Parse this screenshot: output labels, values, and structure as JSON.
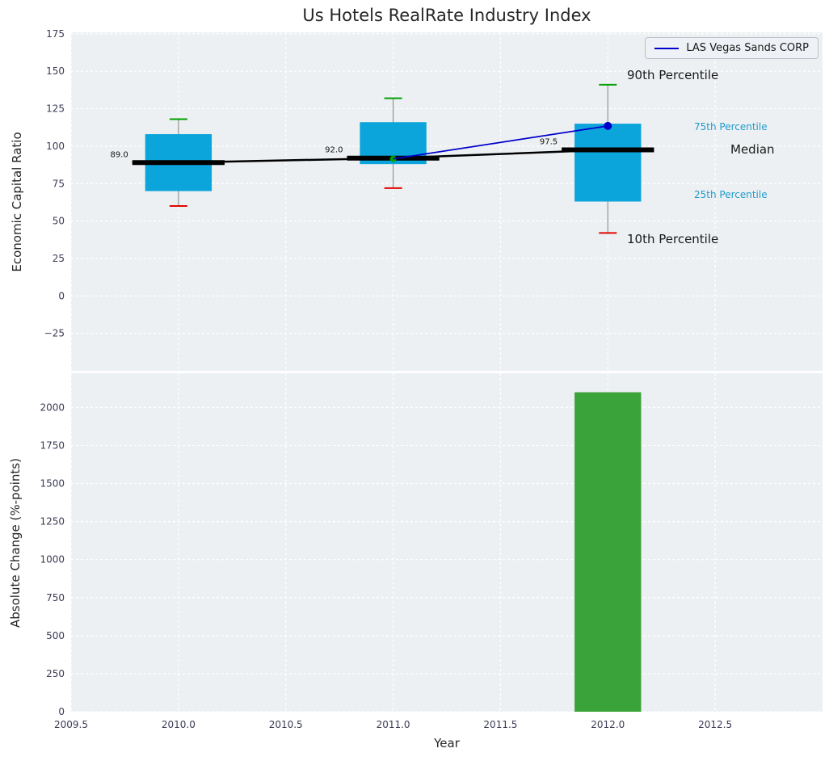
{
  "title": "Us Hotels RealRate Industry Index",
  "axes": {
    "top_ylabel": "Economic Capital Ratio",
    "bottom_ylabel": "Absolute Change (%-points)",
    "xlabel": "Year"
  },
  "legend": {
    "label": "LAS Vegas Sands CORP"
  },
  "annotations": {
    "p90": "90th Percentile",
    "p75": "75th Percentile",
    "median": "Median",
    "p25": "25th Percentile",
    "p10": "10th Percentile"
  },
  "colors": {
    "panel_bg": "#edf0f3",
    "grid": "#ffffff",
    "box": "#0ba4db",
    "bar": "#3aa33a",
    "median": "#000000",
    "company_line": "#0000cc",
    "whisker": "#999999",
    "cap_top": "#00a000",
    "cap_bottom": "#e10600",
    "start_marker": "#00a000",
    "tick_label": "#3b3b55",
    "percentile_label": "#1f9acb",
    "title_color": "#262626"
  },
  "chart_data": [
    {
      "type": "boxplot",
      "title": "Us Hotels RealRate Industry Index",
      "ylabel": "Economic Capital Ratio",
      "ylim": [
        -50,
        176
      ],
      "yticks": [
        175,
        150,
        125,
        100,
        75,
        50,
        25,
        0,
        -25
      ],
      "xlim": [
        2009.5,
        2013.0
      ],
      "xticks": [
        2009.5,
        2010.0,
        2010.5,
        2011.0,
        2011.5,
        2012.0,
        2012.5
      ],
      "grid": true,
      "legend_position": "upper right",
      "boxes": [
        {
          "year": 2010,
          "p10": 60,
          "p25": 70,
          "median": 89.0,
          "p75": 108,
          "p90": 118,
          "median_label": "89.0"
        },
        {
          "year": 2011,
          "p10": 72,
          "p25": 88,
          "median": 92.0,
          "p75": 116,
          "p90": 132,
          "median_label": "92.0"
        },
        {
          "year": 2012,
          "p10": 42,
          "p25": 63,
          "median": 97.5,
          "p75": 115,
          "p90": 141,
          "median_label": "97.5"
        }
      ],
      "series": [
        {
          "name": "LAS Vegas Sands CORP",
          "x": [
            2011,
            2012
          ],
          "y": [
            91.5,
            113.5
          ]
        }
      ]
    },
    {
      "type": "bar",
      "ylabel": "Absolute Change (%-points)",
      "xlabel": "Year",
      "ylim": [
        0,
        2225
      ],
      "yticks": [
        0,
        250,
        500,
        750,
        1000,
        1250,
        1500,
        1750,
        2000
      ],
      "grid": true,
      "bars": [
        {
          "year": 2012,
          "value": 2100
        }
      ]
    }
  ]
}
